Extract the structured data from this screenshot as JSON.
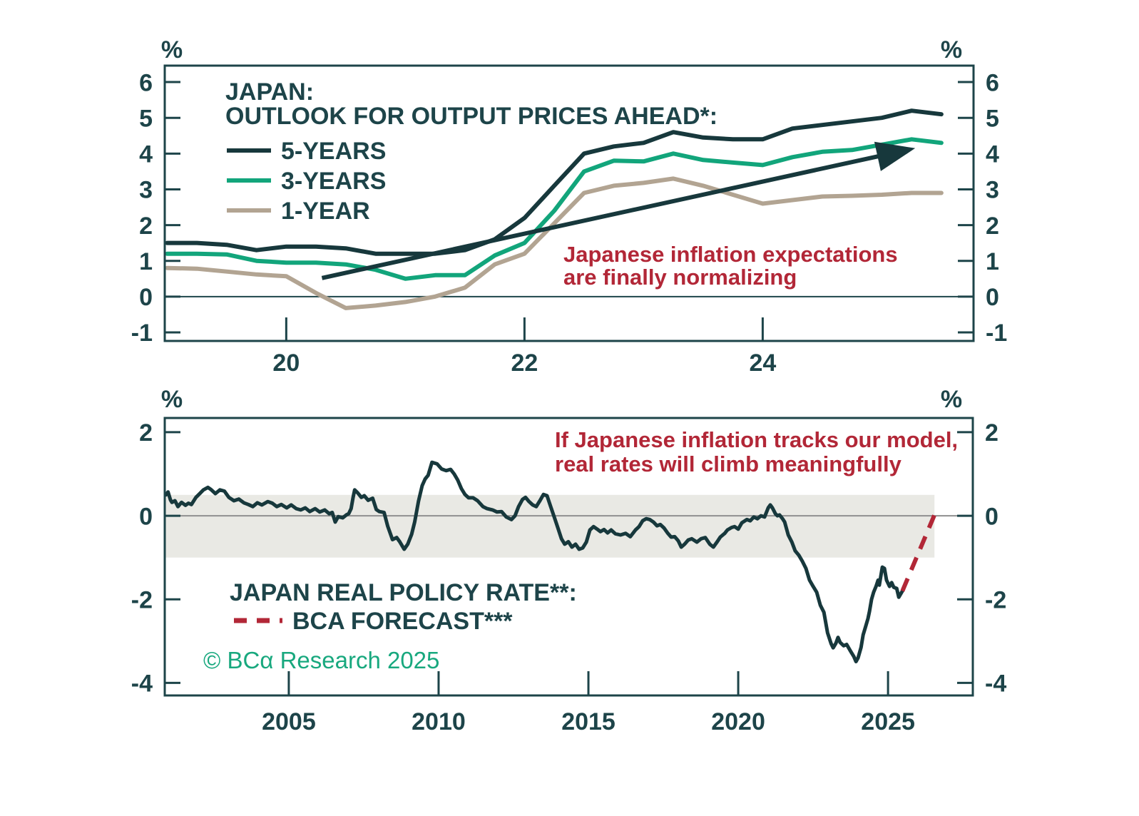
{
  "page": {
    "background": "#ffffff"
  },
  "colors": {
    "axis": "#1d4449",
    "dark_line": "#17383c",
    "green_line": "#12a57b",
    "tan_line": "#b2a492",
    "red": "#b22737",
    "band_gray": "#e9e9e4",
    "zero_gray": "#8f8f8f",
    "copyright_green": "#18a87e"
  },
  "chart_data": [
    {
      "type": "line",
      "panel": "top",
      "title_lines": [
        "JAPAN:",
        "OUTLOOK FOR OUTPUT PRICES AHEAD*:"
      ],
      "unit_label": "%",
      "x": [
        2019.0,
        2019.25,
        2019.5,
        2019.75,
        2020.0,
        2020.25,
        2020.5,
        2020.75,
        2021.0,
        2021.25,
        2021.5,
        2021.75,
        2022.0,
        2022.25,
        2022.5,
        2022.75,
        2023.0,
        2023.25,
        2023.5,
        2023.75,
        2024.0,
        2024.25,
        2024.5,
        2024.75,
        2025.0,
        2025.25,
        2025.5
      ],
      "series": [
        {
          "name": "5-YEARS",
          "color_key": "dark_line",
          "values": [
            1.5,
            1.5,
            1.45,
            1.3,
            1.4,
            1.4,
            1.35,
            1.2,
            1.2,
            1.2,
            1.3,
            1.6,
            2.2,
            3.1,
            4.0,
            4.2,
            4.3,
            4.6,
            4.45,
            4.4,
            4.4,
            4.7,
            4.8,
            4.9,
            5.0,
            5.2,
            5.1
          ]
        },
        {
          "name": "3-YEARS",
          "color_key": "green_line",
          "values": [
            1.2,
            1.2,
            1.18,
            1.0,
            0.95,
            0.95,
            0.9,
            0.75,
            0.5,
            0.6,
            0.6,
            1.15,
            1.5,
            2.4,
            3.5,
            3.8,
            3.78,
            4.0,
            3.82,
            3.75,
            3.68,
            3.9,
            4.05,
            4.1,
            4.25,
            4.4,
            4.3
          ]
        },
        {
          "name": "1-YEAR",
          "color_key": "tan_line",
          "values": [
            0.8,
            0.78,
            0.7,
            0.62,
            0.57,
            0.1,
            -0.32,
            -0.25,
            -0.15,
            0.0,
            0.25,
            0.9,
            1.2,
            2.05,
            2.9,
            3.1,
            3.18,
            3.3,
            3.1,
            2.85,
            2.6,
            2.7,
            2.8,
            2.82,
            2.85,
            2.9,
            2.9
          ]
        }
      ],
      "x_ticks": [
        {
          "v": 2020,
          "label": "20"
        },
        {
          "v": 2022,
          "label": "22"
        },
        {
          "v": 2024,
          "label": "24"
        }
      ],
      "y_ticks": [
        6,
        5,
        4,
        3,
        2,
        1,
        0,
        -1
      ],
      "xlim": [
        2018.98,
        2025.77
      ],
      "ylim": [
        -1.24,
        6.46
      ],
      "zero_line": true,
      "trend_arrow": {
        "from": [
          2020.3,
          0.52
        ],
        "to": [
          2025.28,
          4.15
        ],
        "color_key": "dark_line"
      },
      "annotation": {
        "text_lines": [
          "Japanese inflation expectations",
          "are finally normalizing"
        ],
        "color_key": "red"
      }
    },
    {
      "type": "line",
      "panel": "bottom",
      "legend_label": "JAPAN REAL POLICY RATE**:",
      "forecast_label": "BCA FORECAST***",
      "unit_label": "%",
      "series": [
        {
          "name": "JAPAN REAL POLICY RATE",
          "color_key": "dark_line",
          "points": [
            [
              2000.9,
              0.5
            ],
            [
              2000.97,
              0.57
            ],
            [
              2001.05,
              0.38
            ],
            [
              2001.1,
              0.32
            ],
            [
              2001.2,
              0.36
            ],
            [
              2001.3,
              0.22
            ],
            [
              2001.42,
              0.32
            ],
            [
              2001.55,
              0.25
            ],
            [
              2001.65,
              0.3
            ],
            [
              2001.75,
              0.27
            ],
            [
              2001.9,
              0.44
            ],
            [
              2002.0,
              0.51
            ],
            [
              2002.15,
              0.62
            ],
            [
              2002.3,
              0.68
            ],
            [
              2002.4,
              0.63
            ],
            [
              2002.55,
              0.53
            ],
            [
              2002.7,
              0.62
            ],
            [
              2002.85,
              0.59
            ],
            [
              2003.0,
              0.44
            ],
            [
              2003.17,
              0.36
            ],
            [
              2003.33,
              0.4
            ],
            [
              2003.5,
              0.31
            ],
            [
              2003.65,
              0.27
            ],
            [
              2003.8,
              0.22
            ],
            [
              2003.95,
              0.31
            ],
            [
              2004.1,
              0.26
            ],
            [
              2004.3,
              0.34
            ],
            [
              2004.45,
              0.3
            ],
            [
              2004.6,
              0.22
            ],
            [
              2004.75,
              0.27
            ],
            [
              2004.93,
              0.19
            ],
            [
              2005.08,
              0.26
            ],
            [
              2005.25,
              0.17
            ],
            [
              2005.4,
              0.14
            ],
            [
              2005.55,
              0.19
            ],
            [
              2005.7,
              0.1
            ],
            [
              2005.88,
              0.17
            ],
            [
              2006.03,
              0.09
            ],
            [
              2006.2,
              0.14
            ],
            [
              2006.35,
              0.05
            ],
            [
              2006.45,
              0.08
            ],
            [
              2006.55,
              -0.15
            ],
            [
              2006.65,
              -0.02
            ],
            [
              2006.8,
              -0.05
            ],
            [
              2006.92,
              0.02
            ],
            [
              2007.0,
              0.05
            ],
            [
              2007.08,
              0.17
            ],
            [
              2007.15,
              0.45
            ],
            [
              2007.2,
              0.62
            ],
            [
              2007.3,
              0.55
            ],
            [
              2007.42,
              0.44
            ],
            [
              2007.52,
              0.48
            ],
            [
              2007.65,
              0.37
            ],
            [
              2007.8,
              0.42
            ],
            [
              2007.92,
              0.15
            ],
            [
              2008.02,
              0.1
            ],
            [
              2008.18,
              0.08
            ],
            [
              2008.3,
              -0.25
            ],
            [
              2008.46,
              -0.57
            ],
            [
              2008.6,
              -0.52
            ],
            [
              2008.7,
              -0.62
            ],
            [
              2008.85,
              -0.8
            ],
            [
              2008.97,
              -0.68
            ],
            [
              2009.1,
              -0.44
            ],
            [
              2009.2,
              -0.15
            ],
            [
              2009.33,
              0.35
            ],
            [
              2009.45,
              0.72
            ],
            [
              2009.55,
              0.88
            ],
            [
              2009.65,
              0.97
            ],
            [
              2009.78,
              1.28
            ],
            [
              2009.95,
              1.24
            ],
            [
              2010.1,
              1.12
            ],
            [
              2010.25,
              1.08
            ],
            [
              2010.4,
              1.11
            ],
            [
              2010.52,
              1.0
            ],
            [
              2010.64,
              0.85
            ],
            [
              2010.76,
              0.65
            ],
            [
              2010.88,
              0.51
            ],
            [
              2011.0,
              0.43
            ],
            [
              2011.15,
              0.43
            ],
            [
              2011.3,
              0.36
            ],
            [
              2011.48,
              0.22
            ],
            [
              2011.62,
              0.17
            ],
            [
              2011.8,
              0.14
            ],
            [
              2011.95,
              0.09
            ],
            [
              2012.1,
              0.1
            ],
            [
              2012.26,
              -0.03
            ],
            [
              2012.43,
              -0.09
            ],
            [
              2012.55,
              0.0
            ],
            [
              2012.67,
              0.22
            ],
            [
              2012.8,
              0.39
            ],
            [
              2012.9,
              0.44
            ],
            [
              2013.02,
              0.34
            ],
            [
              2013.14,
              0.26
            ],
            [
              2013.26,
              0.22
            ],
            [
              2013.38,
              0.36
            ],
            [
              2013.5,
              0.51
            ],
            [
              2013.62,
              0.48
            ],
            [
              2013.74,
              0.22
            ],
            [
              2013.86,
              -0.03
            ],
            [
              2013.98,
              -0.29
            ],
            [
              2014.1,
              -0.55
            ],
            [
              2014.21,
              -0.68
            ],
            [
              2014.33,
              -0.62
            ],
            [
              2014.45,
              -0.75
            ],
            [
              2014.57,
              -0.68
            ],
            [
              2014.69,
              -0.8
            ],
            [
              2014.81,
              -0.77
            ],
            [
              2014.93,
              -0.63
            ],
            [
              2015.05,
              -0.34
            ],
            [
              2015.17,
              -0.26
            ],
            [
              2015.29,
              -0.32
            ],
            [
              2015.4,
              -0.38
            ],
            [
              2015.52,
              -0.33
            ],
            [
              2015.64,
              -0.41
            ],
            [
              2015.76,
              -0.34
            ],
            [
              2015.9,
              -0.43
            ],
            [
              2016.07,
              -0.46
            ],
            [
              2016.24,
              -0.42
            ],
            [
              2016.4,
              -0.5
            ],
            [
              2016.57,
              -0.34
            ],
            [
              2016.69,
              -0.26
            ],
            [
              2016.81,
              -0.12
            ],
            [
              2016.93,
              -0.07
            ],
            [
              2017.05,
              -0.09
            ],
            [
              2017.17,
              -0.15
            ],
            [
              2017.29,
              -0.24
            ],
            [
              2017.4,
              -0.21
            ],
            [
              2017.52,
              -0.29
            ],
            [
              2017.64,
              -0.41
            ],
            [
              2017.76,
              -0.51
            ],
            [
              2017.88,
              -0.5
            ],
            [
              2018.0,
              -0.6
            ],
            [
              2018.1,
              -0.75
            ],
            [
              2018.21,
              -0.68
            ],
            [
              2018.33,
              -0.58
            ],
            [
              2018.45,
              -0.55
            ],
            [
              2018.62,
              -0.63
            ],
            [
              2018.76,
              -0.55
            ],
            [
              2018.9,
              -0.52
            ],
            [
              2019.05,
              -0.68
            ],
            [
              2019.17,
              -0.75
            ],
            [
              2019.3,
              -0.62
            ],
            [
              2019.4,
              -0.51
            ],
            [
              2019.55,
              -0.42
            ],
            [
              2019.64,
              -0.34
            ],
            [
              2019.78,
              -0.28
            ],
            [
              2019.88,
              -0.26
            ],
            [
              2020.0,
              -0.32
            ],
            [
              2020.12,
              -0.17
            ],
            [
              2020.29,
              -0.09
            ],
            [
              2020.4,
              -0.12
            ],
            [
              2020.52,
              -0.03
            ],
            [
              2020.64,
              -0.07
            ],
            [
              2020.76,
              0.0
            ],
            [
              2020.88,
              -0.03
            ],
            [
              2021.0,
              0.19
            ],
            [
              2021.07,
              0.26
            ],
            [
              2021.14,
              0.19
            ],
            [
              2021.24,
              0.05
            ],
            [
              2021.31,
              0.0
            ],
            [
              2021.38,
              0.02
            ],
            [
              2021.48,
              -0.07
            ],
            [
              2021.55,
              -0.15
            ],
            [
              2021.67,
              -0.46
            ],
            [
              2021.79,
              -0.63
            ],
            [
              2021.9,
              -0.84
            ],
            [
              2022.02,
              -0.94
            ],
            [
              2022.14,
              -1.09
            ],
            [
              2022.26,
              -1.26
            ],
            [
              2022.38,
              -1.54
            ],
            [
              2022.5,
              -1.69
            ],
            [
              2022.62,
              -1.83
            ],
            [
              2022.74,
              -2.14
            ],
            [
              2022.86,
              -2.31
            ],
            [
              2022.98,
              -2.8
            ],
            [
              2023.1,
              -3.06
            ],
            [
              2023.17,
              -3.16
            ],
            [
              2023.26,
              -3.05
            ],
            [
              2023.33,
              -2.91
            ],
            [
              2023.4,
              -3.03
            ],
            [
              2023.52,
              -3.11
            ],
            [
              2023.62,
              -3.08
            ],
            [
              2023.74,
              -3.23
            ],
            [
              2023.86,
              -3.37
            ],
            [
              2023.93,
              -3.49
            ],
            [
              2024.0,
              -3.4
            ],
            [
              2024.1,
              -3.15
            ],
            [
              2024.17,
              -2.85
            ],
            [
              2024.24,
              -2.68
            ],
            [
              2024.33,
              -2.46
            ],
            [
              2024.38,
              -2.29
            ],
            [
              2024.45,
              -2.0
            ],
            [
              2024.52,
              -1.83
            ],
            [
              2024.6,
              -1.69
            ],
            [
              2024.67,
              -1.54
            ],
            [
              2024.71,
              -1.66
            ],
            [
              2024.81,
              -1.23
            ],
            [
              2024.88,
              -1.26
            ],
            [
              2024.95,
              -1.54
            ],
            [
              2025.05,
              -1.69
            ],
            [
              2025.12,
              -1.6
            ],
            [
              2025.19,
              -1.71
            ],
            [
              2025.29,
              -1.74
            ],
            [
              2025.36,
              -1.95
            ],
            [
              2025.43,
              -1.86
            ],
            [
              2025.48,
              -1.8
            ]
          ]
        }
      ],
      "forecast": {
        "color_key": "red",
        "points": [
          [
            2025.48,
            -1.8
          ],
          [
            2026.55,
            0.02
          ]
        ]
      },
      "band": {
        "y_from": -1.0,
        "y_to": 0.5,
        "x_to": 2026.55,
        "color_key": "band_gray"
      },
      "x_ticks": [
        {
          "v": 2005,
          "label": "2005"
        },
        {
          "v": 2010,
          "label": "2010"
        },
        {
          "v": 2015,
          "label": "2015"
        },
        {
          "v": 2020,
          "label": "2020"
        },
        {
          "v": 2025,
          "label": "2025"
        }
      ],
      "y_ticks": [
        2,
        0,
        -2,
        -4
      ],
      "xlim": [
        2000.86,
        2027.83
      ],
      "ylim": [
        -4.3,
        2.34
      ],
      "zero_line": true,
      "annotation": {
        "text_lines": [
          "If Japanese inflation tracks our model,",
          "real rates will climb meaningfully"
        ],
        "color_key": "red"
      },
      "copyright": {
        "text": "© BCα Research 2025",
        "color_key": "copyright_green"
      }
    }
  ]
}
